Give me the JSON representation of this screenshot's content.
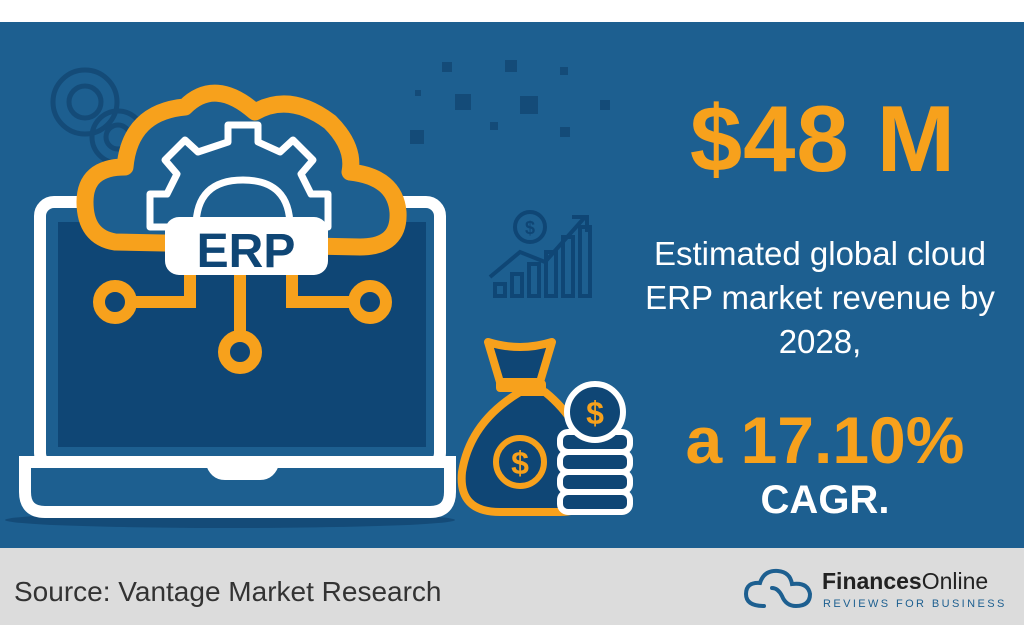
{
  "headline": {
    "amount": "$48 M"
  },
  "description": "Estimated global cloud ERP market revenue by 2028,",
  "growth": {
    "rate": "a 17.10%",
    "label": "CAGR."
  },
  "illustration": {
    "badge": "ERP",
    "icons": [
      "gears-icon",
      "cloud-icon",
      "laptop-icon",
      "growth-chart-icon",
      "money-bag-icon",
      "coin-stack-icon"
    ]
  },
  "footer": {
    "source": "Source: Vantage Market Research",
    "brand_bold": "Finances",
    "brand_light": "Online",
    "tagline": "REVIEWS FOR BUSINESS"
  },
  "colors": {
    "background": "#1d5f90",
    "accent": "#f7a11c",
    "dark": "#0f4675",
    "footer": "#dcdcdc"
  }
}
